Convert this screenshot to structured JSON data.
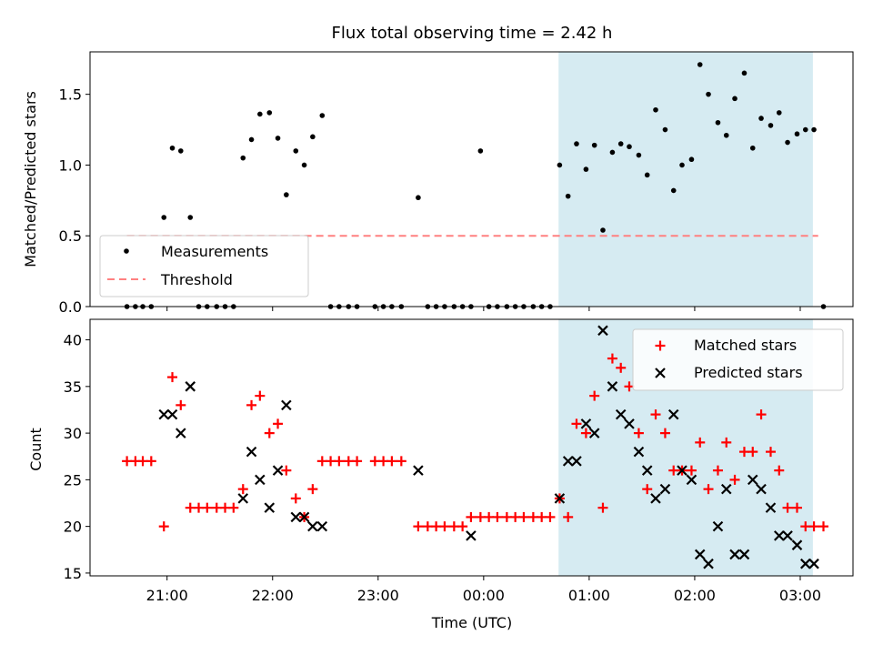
{
  "title": "Flux total observing time = 2.42 h",
  "chart_data": [
    {
      "type": "scatter",
      "ylabel": "Matched/Predicted stars",
      "xlabel": "",
      "xlim_hours": [
        20.27,
        27.5
      ],
      "ylim": [
        0,
        1.8
      ],
      "yticks": [
        0.0,
        0.5,
        1.0,
        1.5
      ],
      "ytick_labels": [
        "0.0",
        "0.5",
        "1.0",
        "1.5"
      ],
      "shaded_span_hours": [
        24.71,
        27.12
      ],
      "shaded_color": "#add8e6",
      "legend": {
        "position": "lower-left",
        "entries": [
          "Measurements",
          "Threshold"
        ]
      },
      "threshold": {
        "name": "Threshold",
        "y": 0.5,
        "x_range_hours": [
          20.62,
          27.17
        ],
        "color": "#ff8080"
      },
      "series": [
        {
          "name": "Measurements",
          "marker": "dot",
          "color": "#000000",
          "x_hours": [
            20.62,
            20.7,
            20.77,
            20.85,
            20.97,
            21.05,
            21.13,
            21.22,
            21.3,
            21.38,
            21.47,
            21.55,
            21.63,
            21.72,
            21.8,
            21.88,
            21.97,
            22.05,
            22.13,
            22.22,
            22.3,
            22.38,
            22.47,
            22.55,
            22.63,
            22.72,
            22.8,
            22.97,
            23.05,
            23.13,
            23.22,
            23.38,
            23.47,
            23.55,
            23.63,
            23.72,
            23.8,
            23.88,
            23.97,
            24.05,
            24.13,
            24.22,
            24.3,
            24.38,
            24.47,
            24.55,
            24.63,
            24.72,
            24.8,
            24.88,
            24.97,
            25.05,
            25.13,
            25.22,
            25.3,
            25.38,
            25.47,
            25.55,
            25.63,
            25.72,
            25.8,
            25.88,
            25.97,
            26.05,
            26.13,
            26.22,
            26.3,
            26.38,
            26.47,
            26.55,
            26.63,
            26.72,
            26.8,
            26.88,
            26.97,
            27.05,
            27.13,
            27.22
          ],
          "y": [
            0.0,
            0.0,
            0.0,
            0.0,
            0.63,
            1.12,
            1.1,
            0.63,
            0.0,
            0.0,
            0.0,
            0.0,
            0.0,
            1.05,
            1.18,
            1.36,
            1.37,
            1.19,
            0.79,
            1.1,
            1.0,
            1.2,
            1.35,
            0.0,
            0.0,
            0.0,
            0.0,
            0.0,
            0.0,
            0.0,
            0.0,
            0.77,
            0.0,
            0.0,
            0.0,
            0.0,
            0.0,
            0.0,
            1.1,
            0.0,
            0.0,
            0.0,
            0.0,
            0.0,
            0.0,
            0.0,
            0.0,
            1.0,
            0.78,
            1.15,
            0.97,
            1.14,
            0.54,
            1.09,
            1.15,
            1.13,
            1.07,
            0.93,
            1.39,
            1.25,
            0.82,
            1.0,
            1.04,
            1.71,
            1.5,
            1.3,
            1.21,
            1.47,
            1.65,
            1.12,
            1.33,
            1.28,
            1.37,
            1.16,
            1.22,
            1.25,
            1.25,
            0.0
          ]
        }
      ]
    },
    {
      "type": "scatter",
      "ylabel": "Count",
      "xlabel": "Time (UTC)",
      "xlim_hours": [
        20.27,
        27.5
      ],
      "ylim": [
        14.7,
        42.2
      ],
      "yticks": [
        15,
        20,
        25,
        30,
        35,
        40
      ],
      "ytick_labels": [
        "15",
        "20",
        "25",
        "30",
        "35",
        "40"
      ],
      "xticks_hours": [
        21,
        22,
        23,
        24,
        25,
        26,
        27
      ],
      "xtick_labels": [
        "21:00",
        "22:00",
        "23:00",
        "00:00",
        "01:00",
        "02:00",
        "03:00"
      ],
      "shaded_span_hours": [
        24.71,
        27.12
      ],
      "shaded_color": "#add8e6",
      "legend": {
        "position": "top-right",
        "entries": [
          "Matched stars",
          "Predicted stars"
        ]
      },
      "series": [
        {
          "name": "Matched stars",
          "marker": "plus",
          "color": "#ff0000",
          "x_hours": [
            20.62,
            20.7,
            20.77,
            20.85,
            20.97,
            21.05,
            21.13,
            21.22,
            21.3,
            21.38,
            21.47,
            21.55,
            21.63,
            21.72,
            21.8,
            21.88,
            21.97,
            22.05,
            22.13,
            22.22,
            22.3,
            22.38,
            22.47,
            22.55,
            22.63,
            22.72,
            22.8,
            22.97,
            23.05,
            23.13,
            23.22,
            23.38,
            23.47,
            23.55,
            23.63,
            23.72,
            23.8,
            23.88,
            23.97,
            24.05,
            24.13,
            24.22,
            24.3,
            24.38,
            24.47,
            24.55,
            24.63,
            24.72,
            24.8,
            24.88,
            24.97,
            25.05,
            25.13,
            25.22,
            25.3,
            25.38,
            25.47,
            25.55,
            25.63,
            25.72,
            25.8,
            25.88,
            25.97,
            26.05,
            26.13,
            26.22,
            26.3,
            26.38,
            26.47,
            26.55,
            26.63,
            26.72,
            26.8,
            26.88,
            26.97,
            27.05,
            27.13,
            27.22
          ],
          "y": [
            27,
            27,
            27,
            27,
            20,
            36,
            33,
            22,
            22,
            22,
            22,
            22,
            22,
            24,
            33,
            34,
            30,
            31,
            26,
            23,
            21,
            24,
            27,
            27,
            27,
            27,
            27,
            27,
            27,
            27,
            27,
            20,
            20,
            20,
            20,
            20,
            20,
            21,
            21,
            21,
            21,
            21,
            21,
            21,
            21,
            21,
            21,
            23,
            21,
            31,
            30,
            34,
            22,
            38,
            37,
            35,
            30,
            24,
            32,
            30,
            26,
            26,
            26,
            29,
            24,
            26,
            29,
            25,
            28,
            28,
            32,
            28,
            26,
            22,
            22,
            20,
            20,
            20
          ]
        },
        {
          "name": "Predicted stars",
          "marker": "x",
          "color": "#000000",
          "x_hours": [
            20.97,
            21.05,
            21.13,
            21.22,
            21.72,
            21.8,
            21.88,
            21.97,
            22.05,
            22.13,
            22.22,
            22.3,
            22.38,
            22.47,
            23.38,
            23.88,
            24.72,
            24.8,
            24.88,
            24.97,
            25.05,
            25.13,
            25.22,
            25.3,
            25.38,
            25.47,
            25.55,
            25.63,
            25.72,
            25.8,
            25.88,
            25.97,
            26.05,
            26.13,
            26.22,
            26.3,
            26.38,
            26.47,
            26.55,
            26.63,
            26.72,
            26.8,
            26.88,
            26.97,
            27.05,
            27.13
          ],
          "y": [
            32,
            32,
            30,
            35,
            23,
            28,
            25,
            22,
            26,
            33,
            21,
            21,
            20,
            20,
            26,
            19,
            23,
            27,
            27,
            31,
            30,
            41,
            35,
            32,
            31,
            28,
            26,
            23,
            24,
            32,
            26,
            25,
            17,
            16,
            20,
            24,
            17,
            17,
            25,
            24,
            22,
            19,
            19,
            18,
            16,
            16
          ]
        }
      ]
    }
  ]
}
